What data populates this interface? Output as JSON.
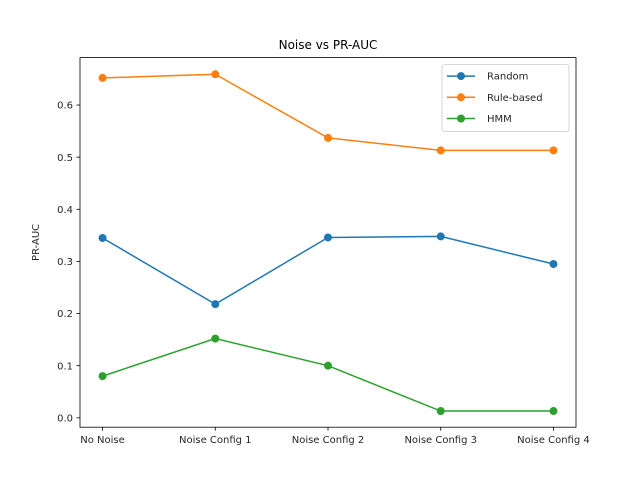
{
  "chart_data": {
    "type": "line",
    "title": "Noise vs PR-AUC",
    "xlabel": "",
    "ylabel": "PR-AUC",
    "categories": [
      "No Noise",
      "Noise Config 1",
      "Noise Config 2",
      "Noise Config 3",
      "Noise Config 4"
    ],
    "ylim": [
      -0.018,
      0.691
    ],
    "yticks": [
      0.0,
      0.1,
      0.2,
      0.3,
      0.4,
      0.5,
      0.6
    ],
    "ytick_labels": [
      "0.0",
      "0.1",
      "0.2",
      "0.3",
      "0.4",
      "0.5",
      "0.6"
    ],
    "grid": false,
    "legend_position": "top-right",
    "series": [
      {
        "name": "Random",
        "color": "#1f77b4",
        "values": [
          0.345,
          0.218,
          0.346,
          0.348,
          0.295
        ]
      },
      {
        "name": "Rule-based",
        "color": "#ff7f0e",
        "values": [
          0.652,
          0.659,
          0.537,
          0.513,
          0.513
        ]
      },
      {
        "name": "HMM",
        "color": "#2ca02c",
        "values": [
          0.08,
          0.152,
          0.1,
          0.013,
          0.013
        ]
      }
    ]
  }
}
